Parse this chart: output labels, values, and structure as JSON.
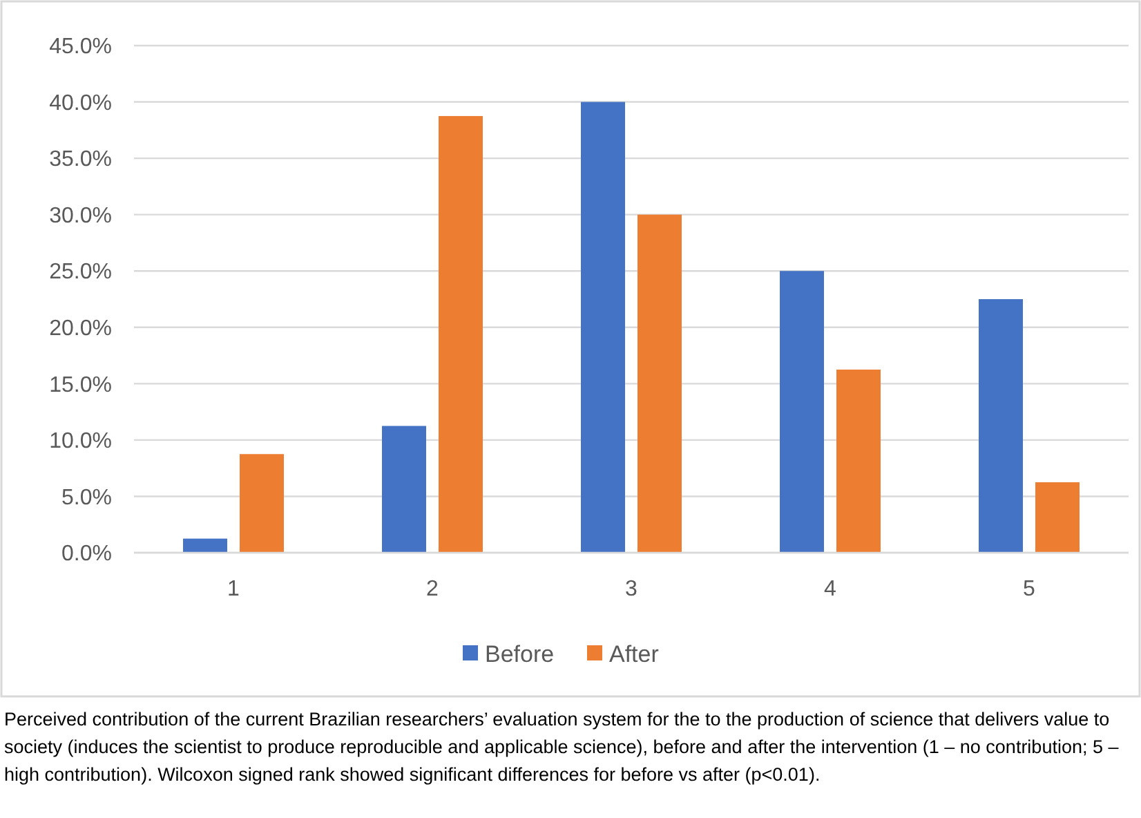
{
  "chart_data": {
    "type": "bar",
    "categories": [
      "1",
      "2",
      "3",
      "4",
      "5"
    ],
    "series": [
      {
        "name": "Before",
        "color": "#4472c4",
        "values": [
          1.25,
          11.25,
          40,
          25,
          22.5
        ]
      },
      {
        "name": "After",
        "color": "#ed7d31",
        "values": [
          8.75,
          38.75,
          30,
          16.25,
          6.25
        ]
      }
    ],
    "ylim": [
      0,
      45
    ],
    "yticks": [
      {
        "value": 0,
        "label": "0.0%"
      },
      {
        "value": 5,
        "label": "5.0%"
      },
      {
        "value": 10,
        "label": "10.0%"
      },
      {
        "value": 15,
        "label": "15.0%"
      },
      {
        "value": 20,
        "label": "20.0%"
      },
      {
        "value": 25,
        "label": "25.0%"
      },
      {
        "value": 30,
        "label": "30.0%"
      },
      {
        "value": 35,
        "label": "35.0%"
      },
      {
        "value": 40,
        "label": "40.0%"
      },
      {
        "value": 45,
        "label": "45.0%"
      }
    ],
    "grid": "y",
    "legend": "bottom",
    "annotations": [
      "Perceived contribution of the current Brazilian researchers’ evaluation system for the to the production of science that delivers value to society (induces the scientist to produce reproducible and applicable science), before and after the intervention (1 – no contribution; 5 – high contribution). Wilcoxon signed rank showed significant differences for before vs after (p<0.01)."
    ]
  }
}
